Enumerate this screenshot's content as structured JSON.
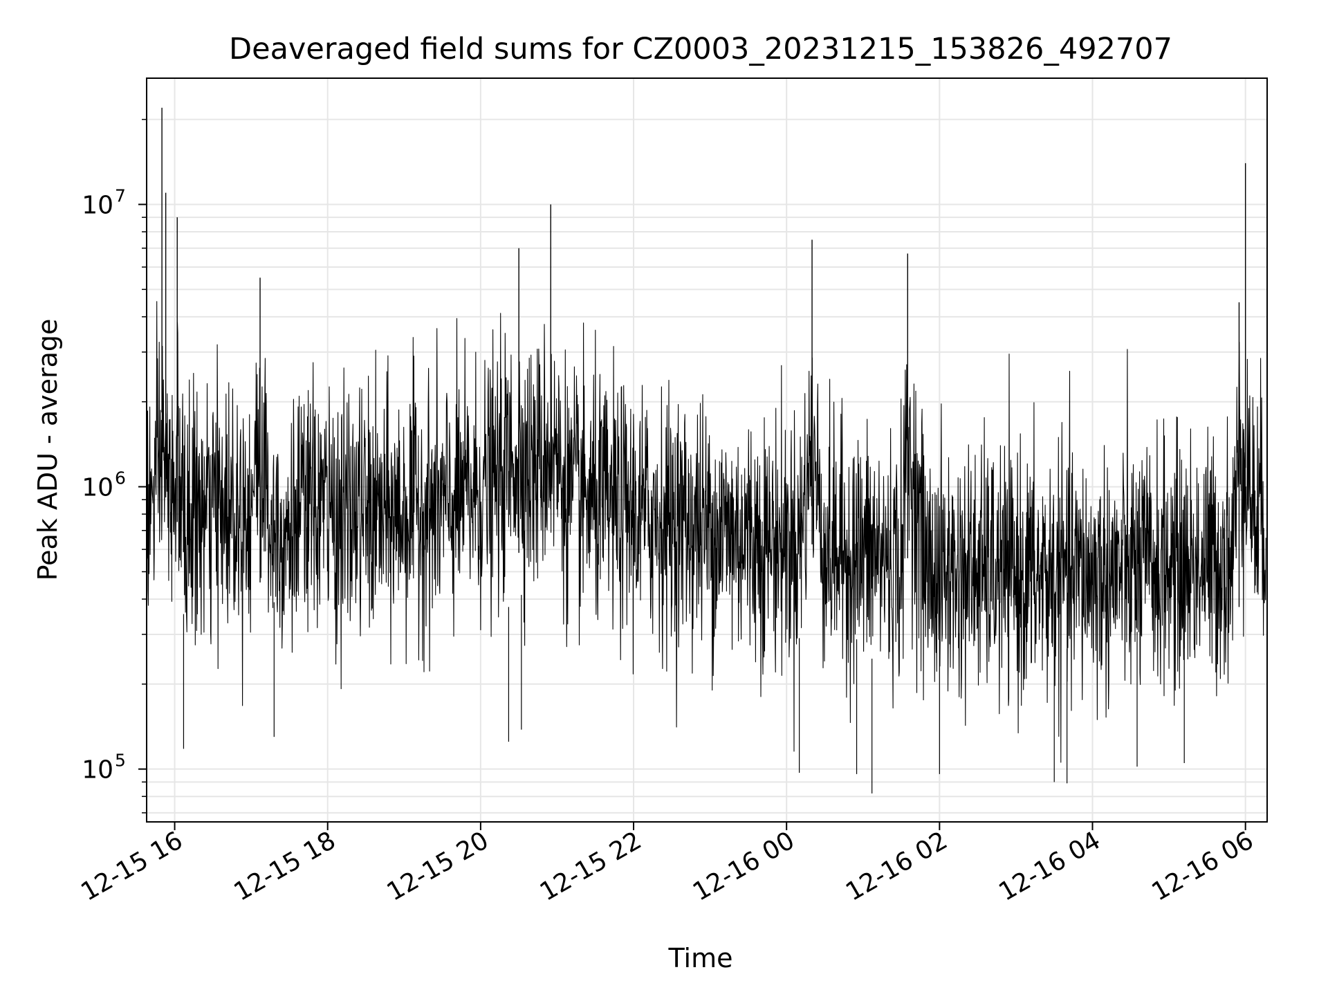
{
  "chart_data": {
    "type": "line",
    "title": "Deaveraged field sums for CZ0003_20231215_153826_492707",
    "xlabel": "Time",
    "ylabel": "Peak ADU - average",
    "yscale": "log",
    "grid": true,
    "legend": "none",
    "line_color": "#000000",
    "grid_color": "#e6e6e6",
    "xlim": [
      "2023-12-15 15:38",
      "2023-12-16 06:17"
    ],
    "ylim": [
      65000,
      28000000
    ],
    "x_ticks": [
      {
        "value": "2023-12-15 16:00",
        "label": "12-15 16"
      },
      {
        "value": "2023-12-15 18:00",
        "label": "12-15 18"
      },
      {
        "value": "2023-12-15 20:00",
        "label": "12-15 20"
      },
      {
        "value": "2023-12-15 22:00",
        "label": "12-15 22"
      },
      {
        "value": "2023-12-16 00:00",
        "label": "12-16 00"
      },
      {
        "value": "2023-12-16 02:00",
        "label": "12-16 02"
      },
      {
        "value": "2023-12-16 04:00",
        "label": "12-16 04"
      },
      {
        "value": "2023-12-16 06:00",
        "label": "12-16 06"
      }
    ],
    "y_ticks": [
      {
        "value": 100000,
        "label": "10",
        "exponent": "5"
      },
      {
        "value": 1000000,
        "label": "10",
        "exponent": "6"
      },
      {
        "value": 10000000,
        "label": "10",
        "exponent": "7"
      }
    ],
    "series": [
      {
        "x": [
          "2023-12-15 15:40",
          "2023-12-15 15:45",
          "2023-12-15 15:49",
          "2023-12-15 15:50",
          "2023-12-15 15:53",
          "2023-12-15 15:55",
          "2023-12-15 15:57",
          "2023-12-15 16:02",
          "2023-12-15 16:06",
          "2023-12-15 16:10",
          "2023-12-15 16:15",
          "2023-12-15 16:20",
          "2023-12-15 16:30",
          "2023-12-15 16:45",
          "2023-12-15 17:00",
          "2023-12-15 17:07",
          "2023-12-15 17:15",
          "2023-12-15 17:30",
          "2023-12-15 17:45",
          "2023-12-15 17:55",
          "2023-12-15 18:10",
          "2023-12-15 18:25",
          "2023-12-15 18:40",
          "2023-12-15 19:00",
          "2023-12-15 19:10",
          "2023-12-15 19:20",
          "2023-12-15 19:40",
          "2023-12-15 20:00",
          "2023-12-15 20:10",
          "2023-12-15 20:20",
          "2023-12-15 20:30",
          "2023-12-15 20:40",
          "2023-12-15 20:55",
          "2023-12-15 21:10",
          "2023-12-15 21:30",
          "2023-12-15 21:50",
          "2023-12-15 22:10",
          "2023-12-15 22:30",
          "2023-12-15 22:50",
          "2023-12-15 23:10",
          "2023-12-15 23:30",
          "2023-12-15 23:50",
          "2023-12-16 00:10",
          "2023-12-16 00:20",
          "2023-12-16 00:30",
          "2023-12-16 00:50",
          "2023-12-16 01:10",
          "2023-12-16 01:30",
          "2023-12-16 01:35",
          "2023-12-16 01:50",
          "2023-12-16 02:10",
          "2023-12-16 02:30",
          "2023-12-16 02:50",
          "2023-12-16 03:10",
          "2023-12-16 03:30",
          "2023-12-16 03:50",
          "2023-12-16 04:10",
          "2023-12-16 04:30",
          "2023-12-16 04:50",
          "2023-12-16 05:10",
          "2023-12-16 05:30",
          "2023-12-16 05:50",
          "2023-12-16 05:55",
          "2023-12-16 06:00",
          "2023-12-16 06:05",
          "2023-12-16 06:10",
          "2023-12-16 06:15"
        ],
        "y": [
          900000,
          1200000,
          1500000,
          22000000,
          11000000,
          900000,
          1100000,
          9000000,
          800000,
          700000,
          900000,
          800000,
          900000,
          1000000,
          1000000,
          5500000,
          800000,
          700000,
          900000,
          1000000,
          800000,
          900000,
          800000,
          900000,
          1000000,
          900000,
          1000000,
          1200000,
          1300000,
          1600000,
          7000000,
          1500000,
          10000000,
          1100000,
          1000000,
          900000,
          850000,
          800000,
          750000,
          700000,
          650000,
          600000,
          600000,
          7500000,
          550000,
          500000,
          500000,
          450000,
          6700000,
          400000,
          380000,
          400000,
          380000,
          370000,
          360000,
          380000,
          370000,
          400000,
          420000,
          430000,
          450000,
          500000,
          4500000,
          14000000,
          1000000,
          800000,
          850000
        ]
      }
    ]
  }
}
